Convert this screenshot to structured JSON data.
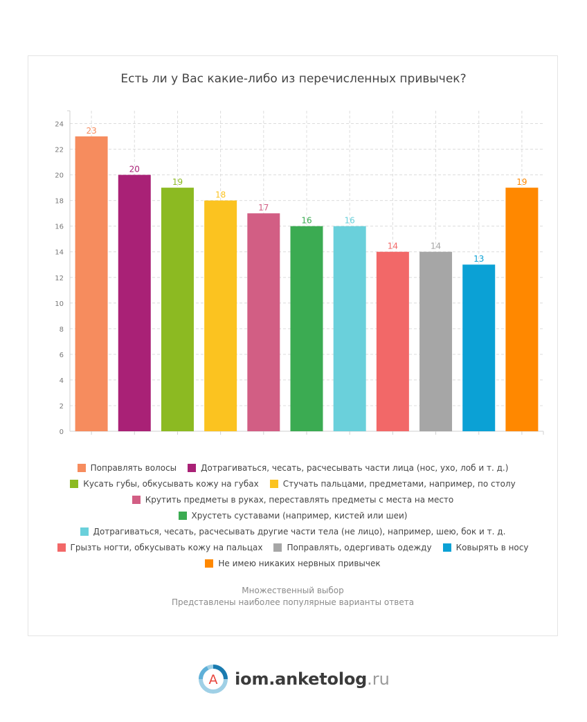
{
  "title": "Есть ли у Вас какие-либо из перечисленных привычек?",
  "chart_data": {
    "type": "bar",
    "title": "Есть ли у Вас какие-либо из перечисленных привычек?",
    "ylim": [
      0,
      25
    ],
    "yticks": [
      0,
      2,
      4,
      6,
      8,
      10,
      12,
      14,
      16,
      18,
      20,
      22,
      24
    ],
    "grid": true,
    "legend_position": "bottom",
    "categories": [
      "Поправлять волосы",
      "Дотрагиваться, чесать, расчесывать части лица (нос, ухо, лоб и т. д.)",
      "Кусать губы, обкусывать кожу на губах",
      "Стучать пальцами, предметами, например, по столу",
      "Крутить предметы в руках, переставлять предметы с места на место",
      "Хрустеть суставами (например, кистей или шеи)",
      "Дотрагиваться, чесать, расчесывать другие части тела (не лицо), например, шею, бок и т. д.",
      "Грызть ногти, обкусывать кожу на пальцах",
      "Поправлять, одергивать одежду",
      "Ковырять в носу",
      "Не имею никаких нервных привычек"
    ],
    "values": [
      23,
      20,
      19,
      18,
      17,
      16,
      16,
      14,
      14,
      13,
      19
    ],
    "colors": [
      "#f68c5e",
      "#a92176",
      "#8cba22",
      "#fbc320",
      "#d25e84",
      "#3bab52",
      "#6ad0db",
      "#f26868",
      "#a6a6a6",
      "#0ba1d5",
      "#ff8800"
    ]
  },
  "legend_rows": [
    [
      0,
      1
    ],
    [
      2,
      3
    ],
    [
      4
    ],
    [
      5
    ],
    [
      6
    ],
    [
      7,
      8,
      9
    ],
    [
      10
    ]
  ],
  "notes": {
    "line1": "Множественный выбор",
    "line2": "Представлены наиболее популярные варианты ответа"
  },
  "brand": {
    "letter": "A",
    "name": "iom.anketolog",
    "tld": ".ru"
  }
}
